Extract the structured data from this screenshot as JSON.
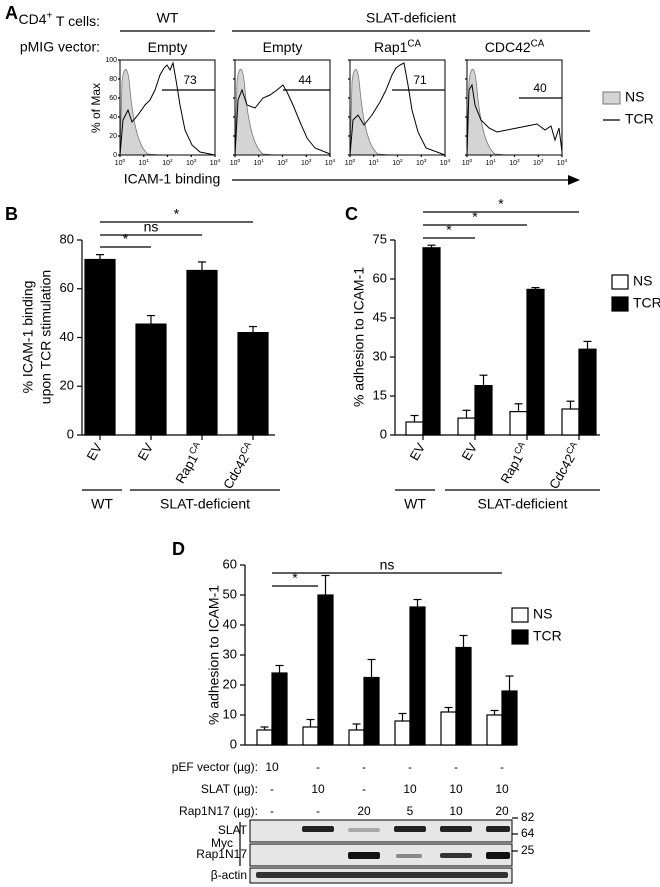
{
  "panel_a": {
    "letter": "A",
    "cells_label": {
      "base": "CD4",
      "sup": "+",
      "rest": " T cells:"
    },
    "vector_label": "pMIG vector:",
    "groups": [
      "WT",
      "SLAT-deficient"
    ],
    "vectors": [
      {
        "base": "Empty"
      },
      {
        "base": "Empty"
      },
      {
        "base": "Rap1",
        "sup": "CA"
      },
      {
        "base": "CDC42",
        "sup": "CA"
      }
    ],
    "gate_values": [
      73,
      44,
      71,
      40
    ],
    "ylabel": "% of Max",
    "yticks": [
      0,
      20,
      40,
      60,
      80,
      100
    ],
    "xticks": [
      {
        "base": "10",
        "sup": "0"
      },
      {
        "base": "10",
        "sup": "1"
      },
      {
        "base": "10",
        "sup": "2"
      },
      {
        "base": "10",
        "sup": "3"
      },
      {
        "base": "10",
        "sup": "4"
      }
    ],
    "xlabel": "ICAM-1 binding",
    "legend": [
      "NS",
      "TCR"
    ]
  },
  "chart_data": [
    {
      "type": "bar",
      "letter": "B",
      "ylabel": [
        "% ICAM-1 binding",
        "upon TCR stimulation"
      ],
      "categories": [
        {
          "base": "EV"
        },
        {
          "base": "EV"
        },
        {
          "base": "Rap1",
          "sup": "CA"
        },
        {
          "base": "Cdc42",
          "sup": "CA"
        }
      ],
      "series": [
        {
          "color": "#000000",
          "values": [
            72,
            45.5,
            67.5,
            42
          ],
          "errors": [
            2,
            3.5,
            3.5,
            2.5
          ]
        }
      ],
      "ylim": [
        0,
        80
      ],
      "yticks": [
        0,
        20,
        40,
        60,
        80
      ],
      "significance": [
        "*",
        "ns",
        "*"
      ],
      "groups": [
        "WT",
        "SLAT-deficient"
      ]
    },
    {
      "type": "bar",
      "letter": "C",
      "ylabel": [
        "% adhesion to ICAM-1"
      ],
      "categories": [
        {
          "base": "EV"
        },
        {
          "base": "EV"
        },
        {
          "base": "Rap1",
          "sup": "CA"
        },
        {
          "base": "Cdc42",
          "sup": "CA"
        }
      ],
      "series": [
        {
          "name": "NS",
          "color": "#ffffff",
          "values": [
            5,
            6.5,
            9,
            10
          ],
          "errors": [
            2.5,
            3,
            3,
            3
          ]
        },
        {
          "name": "TCR",
          "color": "#000000",
          "values": [
            72,
            19,
            56,
            33
          ],
          "errors": [
            1,
            4,
            0.7,
            3
          ]
        }
      ],
      "ylim": [
        0,
        75
      ],
      "yticks": [
        0,
        15,
        30,
        45,
        60,
        75
      ],
      "significance": [
        "*",
        "*",
        "*"
      ],
      "groups": [
        "WT",
        "SLAT-deficient"
      ]
    },
    {
      "type": "bar",
      "letter": "D",
      "ylabel": [
        "% adhesion to ICAM-1"
      ],
      "categories": [
        null,
        null,
        null,
        null,
        null,
        null
      ],
      "series": [
        {
          "name": "NS",
          "color": "#ffffff",
          "values": [
            5,
            6,
            5,
            8,
            11,
            10
          ],
          "errors": [
            1,
            2.5,
            2,
            2.5,
            1.5,
            1.5
          ]
        },
        {
          "name": "TCR",
          "color": "#000000",
          "values": [
            24,
            50,
            22.5,
            46,
            32.5,
            18
          ],
          "errors": [
            2.5,
            6.5,
            6,
            2.5,
            4,
            5
          ]
        }
      ],
      "ylim": [
        0,
        60
      ],
      "yticks": [
        0,
        10,
        20,
        30,
        40,
        50,
        60
      ],
      "significance": [
        "*",
        "ns"
      ],
      "conditions": [
        {
          "label": "pEF vector (µg):",
          "cells": [
            "10",
            "-",
            "-",
            "-",
            "-",
            "-"
          ]
        },
        {
          "label": "SLAT (µg):",
          "cells": [
            "-",
            "10",
            "-",
            "10",
            "10",
            "10"
          ]
        },
        {
          "label": "Rap1N17 (µg):",
          "cells": [
            "-",
            "-",
            "20",
            "5",
            "10",
            "20"
          ]
        }
      ],
      "blot": {
        "tag": "Myc",
        "rows": [
          "SLAT",
          "Rap1N17",
          "β-actin"
        ],
        "markers": [
          82,
          64,
          25
        ]
      }
    }
  ]
}
